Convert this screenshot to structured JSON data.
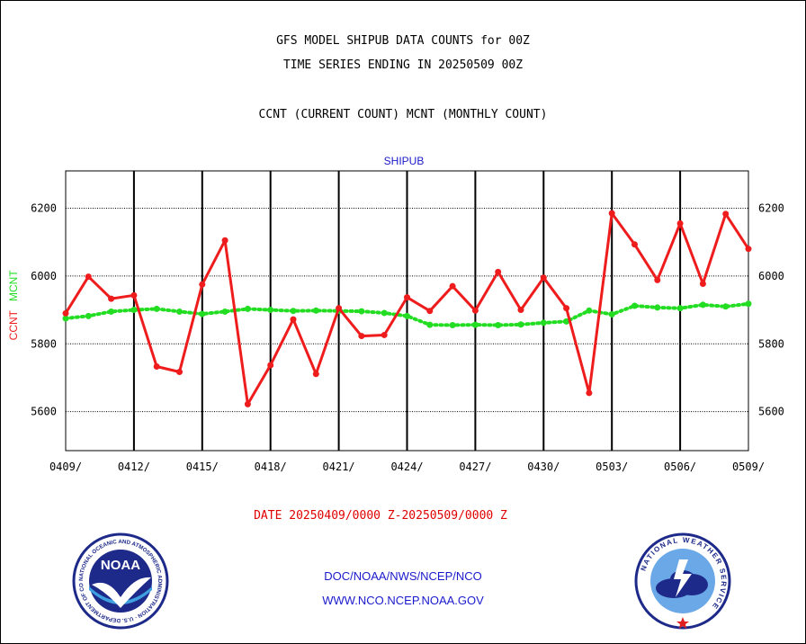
{
  "header": {
    "line1": "GFS MODEL SHIPUB DATA COUNTS for 00Z",
    "line2": "TIME SERIES ENDING IN 20250509 00Z",
    "line3": "CCNT (CURRENT COUNT) MCNT (MONTHLY COUNT)"
  },
  "footer": {
    "date_range": "DATE 20250409/0000 Z-20250509/0000 Z",
    "org_path": "DOC/NOAA/NWS/NCEP/NCO",
    "website": "WWW.NCO.NCEP.NOAA.GOV",
    "noaa_logo_text": "NOAA",
    "noaa_ring_text": "NATIONAL OCEANIC AND ATMOSPHERIC ADMINISTRATION · U.S. DEPARTMENT OF COMMERCE",
    "nws_ring_text": "NATIONAL WEATHER SERVICE"
  },
  "colors": {
    "ccnt": "#ee1c1c",
    "mcnt": "#22dd22",
    "ccnt_label": "#ee1c1c",
    "mcnt_label": "#22dd22",
    "series_title": "#1a1acc"
  },
  "chart_data": {
    "type": "line",
    "title": "SHIPUB",
    "ylabel_parts": [
      "CCNT",
      "MCNT"
    ],
    "ylim": [
      5485,
      6310
    ],
    "yticks": [
      5600,
      5800,
      6000,
      6200
    ],
    "xlim": [
      0,
      30
    ],
    "xticks": [
      {
        "x": 0,
        "label": "0409/"
      },
      {
        "x": 3,
        "label": "0412/"
      },
      {
        "x": 6,
        "label": "0415/"
      },
      {
        "x": 9,
        "label": "0418/"
      },
      {
        "x": 12,
        "label": "0421/"
      },
      {
        "x": 15,
        "label": "0424/"
      },
      {
        "x": 18,
        "label": "0427/"
      },
      {
        "x": 21,
        "label": "0430/"
      },
      {
        "x": 24,
        "label": "0503/"
      },
      {
        "x": 27,
        "label": "0506/"
      },
      {
        "x": 30,
        "label": "0509/"
      }
    ],
    "grid": true,
    "series": [
      {
        "name": "CCNT",
        "style": "solid",
        "values": [
          5890,
          5998,
          5933,
          5943,
          5733,
          5717,
          5975,
          6105,
          5622,
          5737,
          5872,
          5711,
          5905,
          5823,
          5826,
          5937,
          5897,
          5970,
          5898,
          6012,
          5900,
          5995,
          5905,
          5655,
          6185,
          6093,
          5988,
          6155,
          5977,
          6183,
          6080
        ]
      },
      {
        "name": "MCNT",
        "style": "dotted",
        "values": [
          5875,
          5882,
          5895,
          5900,
          5903,
          5895,
          5888,
          5895,
          5903,
          5900,
          5897,
          5898,
          5897,
          5896,
          5891,
          5882,
          5856,
          5855,
          5856,
          5855,
          5857,
          5862,
          5866,
          5898,
          5887,
          5912,
          5907,
          5905,
          5915,
          5910,
          5918
        ]
      }
    ]
  }
}
